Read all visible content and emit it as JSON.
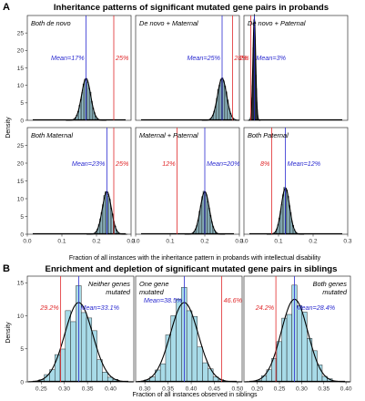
{
  "sections": [
    {
      "letter": "A",
      "title": "Inheritance patterns of significant mutated gene pairs in probands"
    },
    {
      "letter": "B",
      "title": "Enrichment and depletion of significant mutated gene pairs in siblings"
    }
  ],
  "chart_data": [
    {
      "type": "histogram",
      "group": "A",
      "ylabel": "Density",
      "xlabel": "Fraction of all instances with the inheritance pattern in probands with intellectual disability",
      "xlim": [
        0,
        0.3
      ],
      "xticks": [
        0.0,
        0.1,
        0.2,
        0.3
      ],
      "xtick_labels": [
        "0.0",
        "0.1",
        "0.2",
        "0.3"
      ],
      "ylim": [
        0,
        0.3
      ],
      "yticks": [
        0,
        0.05,
        0.1,
        0.15,
        0.2,
        0.25
      ],
      "ytick_labels": [
        "0",
        "5",
        "10",
        "15",
        "20",
        "25"
      ],
      "panels": [
        {
          "name": "Both de novo",
          "mean": 0.17,
          "mean_label": "Mean=17%",
          "observed": 0.25,
          "observed_label": "25%",
          "sd": 0.013,
          "peak": 0.12
        },
        {
          "name": "De novo + Maternal",
          "mean": 0.25,
          "mean_label": "Mean=25%",
          "observed": 0.28,
          "observed_label": "28%",
          "sd": 0.013,
          "peak": 0.12
        },
        {
          "name": "De novo + Paternal",
          "mean": 0.03,
          "mean_label": "Mean=3%",
          "observed": 0.02,
          "observed_label": "2%",
          "sd": 0.004,
          "peak": 0.29
        },
        {
          "name": "Both Maternal",
          "mean": 0.23,
          "mean_label": "Mean=23%",
          "observed": 0.25,
          "observed_label": "25%",
          "sd": 0.013,
          "peak": 0.12
        },
        {
          "name": "Maternal + Paternal",
          "mean": 0.2,
          "mean_label": "Mean=20%",
          "observed": 0.12,
          "observed_label": "12%",
          "sd": 0.013,
          "peak": 0.12
        },
        {
          "name": "Both Paternal",
          "mean": 0.12,
          "mean_label": "Mean=12%",
          "observed": 0.08,
          "observed_label": "8%",
          "sd": 0.012,
          "peak": 0.13
        }
      ]
    },
    {
      "type": "histogram",
      "group": "B",
      "ylabel": "Density",
      "xlabel": "Fraction of all instances observed in siblings",
      "panels": [
        {
          "name": "Neither genes mutated",
          "mean": 0.331,
          "mean_label": "Mean=33.1%",
          "observed": 0.292,
          "observed_label": "29.2%",
          "sd": 0.03,
          "peak": 12,
          "xlim": [
            0.22,
            0.45
          ],
          "xticks": [
            0.25,
            0.3,
            0.35,
            0.4
          ],
          "xtick_labels": [
            "0.25",
            "0.30",
            "0.35",
            "0.40"
          ],
          "ylim": [
            0,
            16
          ],
          "yticks": [
            0,
            5,
            10,
            15
          ],
          "ytick_labels": [
            "0",
            "5",
            "10",
            "15"
          ]
        },
        {
          "name": "One gene mutated",
          "mean": 0.385,
          "mean_label": "Mean=38.5%",
          "observed": 0.466,
          "observed_label": "46.6%",
          "sd": 0.03,
          "peak": 12,
          "xlim": [
            0.28,
            0.51
          ],
          "xticks": [
            0.3,
            0.35,
            0.4,
            0.45,
            0.5
          ],
          "xtick_labels": [
            "0.30",
            "0.35",
            "0.40",
            "0.45",
            "0.50"
          ],
          "ylim": [
            0,
            16
          ],
          "yticks": [],
          "ytick_labels": []
        },
        {
          "name": "Both genes mutated",
          "mean": 0.284,
          "mean_label": "Mean=28.4%",
          "observed": 0.242,
          "observed_label": "24.2%",
          "sd": 0.03,
          "peak": 12.5,
          "xlim": [
            0.17,
            0.41
          ],
          "xticks": [
            0.2,
            0.25,
            0.3,
            0.35,
            0.4
          ],
          "xtick_labels": [
            "0.20",
            "0.25",
            "0.30",
            "0.35",
            "0.40"
          ],
          "ylim": [
            0,
            16
          ],
          "yticks": [],
          "ytick_labels": []
        }
      ]
    }
  ]
}
